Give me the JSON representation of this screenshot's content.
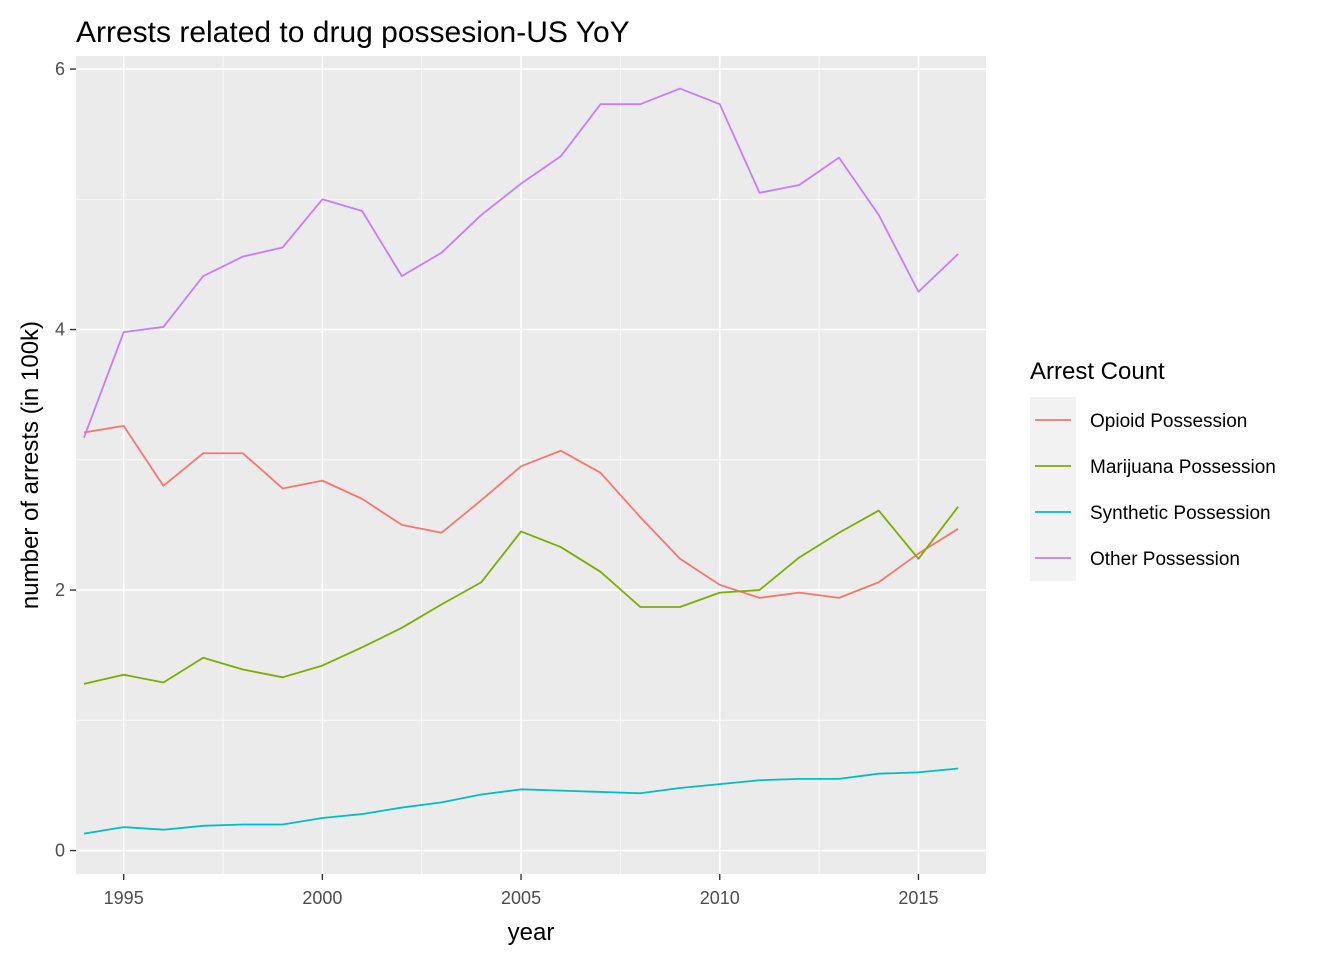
{
  "chart_data": {
    "type": "line",
    "title": "Arrests related to drug possesion-US YoY",
    "xlabel": "year",
    "ylabel": "number of arrests (in 100k)",
    "xlim": [
      1993.8,
      2016.7
    ],
    "ylim": [
      -0.18,
      6.1
    ],
    "x_ticks": [
      1995,
      2000,
      2005,
      2010,
      2015
    ],
    "y_ticks": [
      0,
      2,
      4,
      6
    ],
    "grid": true,
    "legend": {
      "title": "Arrest Count",
      "position": "right"
    },
    "x": [
      1994,
      1995,
      1996,
      1997,
      1998,
      1999,
      2000,
      2001,
      2002,
      2003,
      2004,
      2005,
      2006,
      2007,
      2008,
      2009,
      2010,
      2011,
      2012,
      2013,
      2014,
      2015,
      2016
    ],
    "series": [
      {
        "name": "Opioid Possession",
        "color": "#F8766D",
        "values": [
          3.21,
          3.26,
          2.8,
          3.05,
          3.05,
          2.78,
          2.84,
          2.7,
          2.5,
          2.44,
          2.69,
          2.95,
          3.07,
          2.9,
          2.56,
          2.24,
          2.04,
          1.94,
          1.98,
          1.94,
          2.06,
          2.28,
          2.47
        ]
      },
      {
        "name": "Marijuana Possession",
        "color": "#7CAE00",
        "values": [
          1.28,
          1.35,
          1.29,
          1.48,
          1.39,
          1.33,
          1.42,
          1.56,
          1.71,
          1.89,
          2.06,
          2.45,
          2.33,
          2.14,
          1.87,
          1.87,
          1.98,
          2.0,
          2.25,
          2.44,
          2.61,
          2.24,
          2.64
        ]
      },
      {
        "name": "Synthetic Possession",
        "color": "#00BFC4",
        "values": [
          0.13,
          0.18,
          0.16,
          0.19,
          0.2,
          0.2,
          0.25,
          0.28,
          0.33,
          0.37,
          0.43,
          0.47,
          0.46,
          0.45,
          0.44,
          0.48,
          0.51,
          0.54,
          0.55,
          0.55,
          0.59,
          0.6,
          0.63
        ]
      },
      {
        "name": "Other Possession",
        "color": "#C77CFF",
        "values": [
          3.17,
          3.98,
          4.02,
          4.41,
          4.56,
          4.63,
          5.0,
          4.91,
          4.41,
          4.59,
          4.88,
          5.12,
          5.33,
          5.73,
          5.73,
          5.85,
          5.73,
          5.05,
          5.11,
          5.32,
          4.88,
          4.29,
          4.58
        ]
      }
    ]
  }
}
